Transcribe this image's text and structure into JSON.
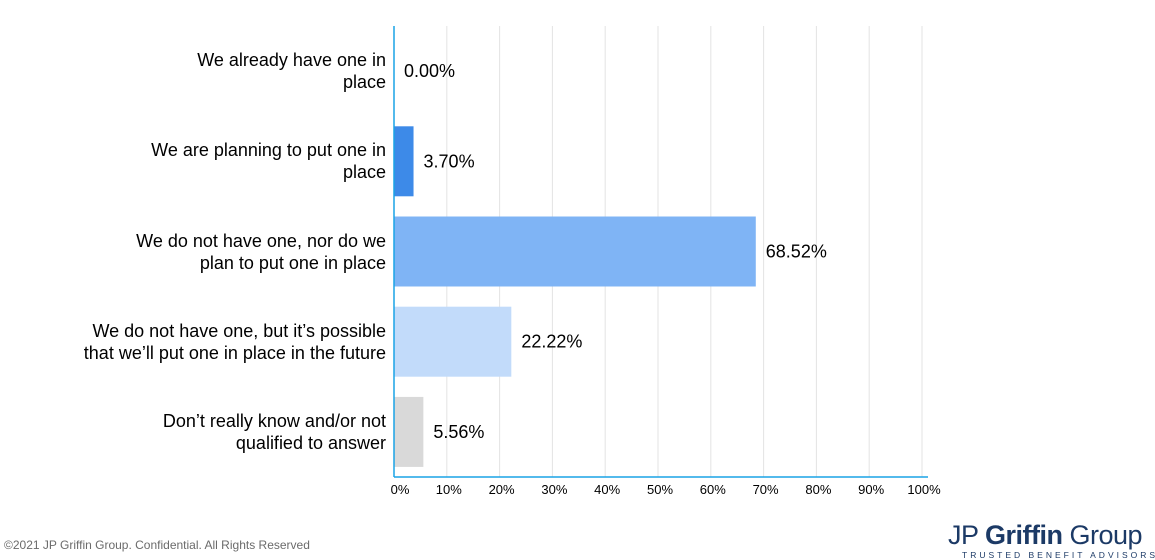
{
  "chart_data": {
    "type": "bar",
    "orientation": "horizontal",
    "categories": [
      "We already have one in place",
      "We are planning to put one in place",
      "We do not have one, nor do we plan to put one in place",
      "We do not have one, but it’s possible that we’ll put one in place in the future",
      "Don’t really know and/or not qualified to answer"
    ],
    "category_lines": [
      [
        "We already have one in",
        "place"
      ],
      [
        "We are planning to put one in",
        "place"
      ],
      [
        "We do not have one, nor do we",
        "plan to put one in place"
      ],
      [
        "We do not have one, but it’s possible",
        "that we’ll put one in place in the future"
      ],
      [
        "Don’t really know and/or not",
        "qualified to answer"
      ]
    ],
    "values": [
      0.0,
      3.7,
      68.52,
      22.22,
      5.56
    ],
    "value_labels": [
      "0.00%",
      "3.70%",
      "68.52%",
      "22.22%",
      "5.56%"
    ],
    "bar_colors": [
      "#4a8fe8",
      "#3d8ae8",
      "#7fb4f5",
      "#c2dbfa",
      "#d9d9d9"
    ],
    "xlim": [
      0,
      100
    ],
    "xticks": [
      "0%",
      "10%",
      "20%",
      "30%",
      "40%",
      "50%",
      "60%",
      "70%",
      "80%",
      "90%",
      "100%"
    ],
    "grid": true,
    "axis_color": "#1aa3e6",
    "grid_color": "#e3e3e3"
  },
  "footer": {
    "copyright": "©2021 JP Griffin Group. Confidential. All Rights Reserved"
  },
  "logo": {
    "prefix": "JP ",
    "bold": "Griffin",
    "suffix": " Group",
    "tagline": "TRUSTED BENEFIT ADVISORS"
  }
}
